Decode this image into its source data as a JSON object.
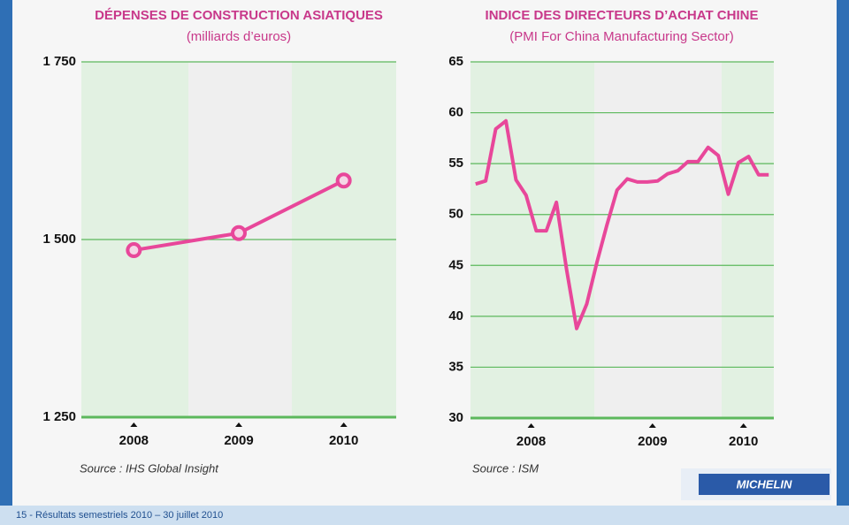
{
  "chart_data": [
    {
      "type": "line",
      "title": "DÉPENSES DE CONSTRUCTION ASIATIQUES",
      "subtitle": "(milliards d’euros)",
      "categories": [
        "2008",
        "2009",
        "2010"
      ],
      "values": [
        1485,
        1509,
        1583
      ],
      "color": "#e8479a",
      "markers": true,
      "ylim": [
        1250,
        1750
      ],
      "yticks": [
        {
          "value": 1250,
          "label": "1 250"
        },
        {
          "value": 1500,
          "label": "1 500"
        },
        {
          "value": 1750,
          "label": "1 750"
        }
      ],
      "grid": true,
      "source": "Source : IHS Global Insight"
    },
    {
      "type": "line",
      "title": "INDICE DES DIRECTEURS D’ACHAT CHINE",
      "subtitle": "(PMI For China Manufacturing Sector)",
      "x": [
        2008.042,
        2008.125,
        2008.208,
        2008.292,
        2008.375,
        2008.458,
        2008.542,
        2008.625,
        2008.708,
        2008.792,
        2008.875,
        2008.958,
        2009.042,
        2009.125,
        2009.208,
        2009.292,
        2009.375,
        2009.458,
        2009.542,
        2009.625,
        2009.708,
        2009.792,
        2009.875,
        2009.958,
        2010.042,
        2010.125,
        2010.208,
        2010.292,
        2010.375,
        2010.458
      ],
      "values": [
        53,
        53.3,
        58.4,
        59.2,
        53.4,
        51.9,
        48.4,
        48.4,
        51.2,
        44.6,
        38.8,
        41.2,
        45.3,
        49,
        52.4,
        53.5,
        53.2,
        53.2,
        53.3,
        54,
        54.3,
        55.2,
        55.2,
        56.6,
        55.8,
        52,
        55.1,
        55.7,
        53.9,
        53.9
      ],
      "color": "#e8479a",
      "markers": false,
      "xlim": [
        2008,
        2010.5
      ],
      "xticks": [
        {
          "value": 2008.5,
          "label": "2008"
        },
        {
          "value": 2009.5,
          "label": "2009"
        },
        {
          "value": 2010.25,
          "label": "2010"
        }
      ],
      "ylim": [
        30,
        65
      ],
      "yticks": [
        30,
        35,
        40,
        45,
        50,
        55,
        60,
        65
      ],
      "grid": true,
      "source": "Source : ISM"
    }
  ],
  "logo": "MICHELIN",
  "footer": "15 - Résultats semestriels 2010 – 30 juillet 2010"
}
